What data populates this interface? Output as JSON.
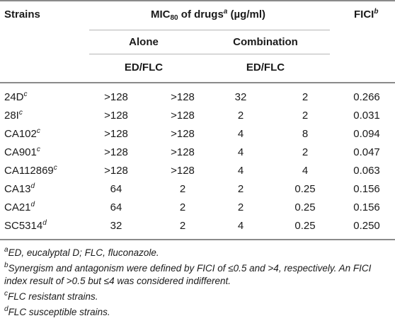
{
  "header": {
    "strains": "Strains",
    "mic_prefix": "MIC",
    "mic_sub": "80",
    "mic_mid": " of drugs",
    "mic_sup": "a",
    "mic_unit": " (µg/ml)",
    "fici": "FICI",
    "fici_sup": "b",
    "alone": "Alone",
    "combination": "Combination",
    "alone_sub": "ED/FLC",
    "combination_sub": "ED/FLC"
  },
  "rows": [
    {
      "strain": "24D",
      "sup": "c",
      "a1": ">128",
      "a2": ">128",
      "c1": "32",
      "c2": "2",
      "fici": "0.266"
    },
    {
      "strain": "28I",
      "sup": "c",
      "a1": ">128",
      "a2": ">128",
      "c1": "2",
      "c2": "2",
      "fici": "0.031"
    },
    {
      "strain": "CA102",
      "sup": "c",
      "a1": ">128",
      "a2": ">128",
      "c1": "4",
      "c2": "8",
      "fici": "0.094"
    },
    {
      "strain": "CA901",
      "sup": "c",
      "a1": ">128",
      "a2": ">128",
      "c1": "4",
      "c2": "2",
      "fici": "0.047"
    },
    {
      "strain": "CA112869",
      "sup": "c",
      "a1": ">128",
      "a2": ">128",
      "c1": "4",
      "c2": "4",
      "fici": "0.063"
    },
    {
      "strain": "CA13",
      "sup": "d",
      "a1": "64",
      "a2": "2",
      "c1": "2",
      "c2": "0.25",
      "fici": "0.156"
    },
    {
      "strain": "CA21",
      "sup": "d",
      "a1": "64",
      "a2": "2",
      "c1": "2",
      "c2": "0.25",
      "fici": "0.156"
    },
    {
      "strain": "SC5314",
      "sup": "d",
      "a1": "32",
      "a2": "2",
      "c1": "4",
      "c2": "0.25",
      "fici": "0.250"
    }
  ],
  "footnotes": [
    {
      "mark": "a",
      "text": "ED, eucalyptal D; FLC, fluconazole."
    },
    {
      "mark": "b",
      "text": "Synergism and antagonism were defined by FICI of ≤0.5 and >4, respectively. An FICI index result of >0.5 but ≤4 was considered indifferent."
    },
    {
      "mark": "c",
      "text": "FLC resistant strains."
    },
    {
      "mark": "d",
      "text": "FLC susceptible strains."
    }
  ]
}
